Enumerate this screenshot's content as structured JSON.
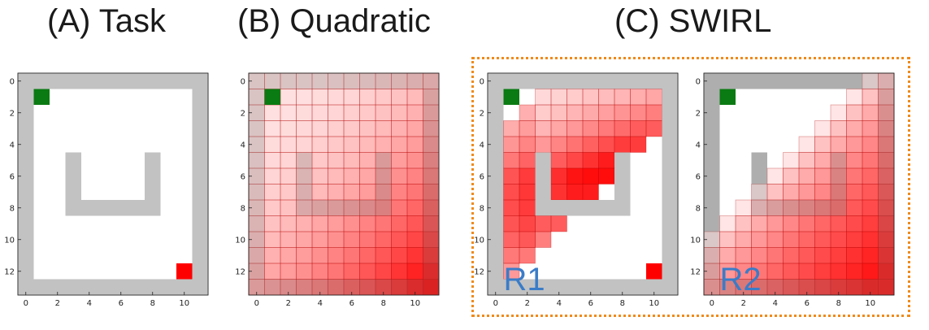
{
  "titles": {
    "task": "(A) Task",
    "quadratic": "(B) Quadratic",
    "swirl": "(C) SWIRL"
  },
  "grid": {
    "rows": 14,
    "cols": 12,
    "x_ticks": [
      0,
      2,
      4,
      6,
      8,
      10
    ],
    "y_ticks": [
      0,
      2,
      4,
      6,
      8,
      10,
      12
    ],
    "wall_cells": [
      [
        0,
        0
      ],
      [
        0,
        1
      ],
      [
        0,
        2
      ],
      [
        0,
        3
      ],
      [
        0,
        4
      ],
      [
        0,
        5
      ],
      [
        0,
        6
      ],
      [
        0,
        7
      ],
      [
        0,
        8
      ],
      [
        0,
        9
      ],
      [
        0,
        10
      ],
      [
        0,
        11
      ],
      [
        13,
        0
      ],
      [
        13,
        1
      ],
      [
        13,
        2
      ],
      [
        13,
        3
      ],
      [
        13,
        4
      ],
      [
        13,
        5
      ],
      [
        13,
        6
      ],
      [
        13,
        7
      ],
      [
        13,
        8
      ],
      [
        13,
        9
      ],
      [
        13,
        10
      ],
      [
        13,
        11
      ],
      [
        1,
        0
      ],
      [
        2,
        0
      ],
      [
        3,
        0
      ],
      [
        4,
        0
      ],
      [
        5,
        0
      ],
      [
        6,
        0
      ],
      [
        7,
        0
      ],
      [
        8,
        0
      ],
      [
        9,
        0
      ],
      [
        10,
        0
      ],
      [
        11,
        0
      ],
      [
        12,
        0
      ],
      [
        1,
        11
      ],
      [
        2,
        11
      ],
      [
        3,
        11
      ],
      [
        4,
        11
      ],
      [
        5,
        11
      ],
      [
        6,
        11
      ],
      [
        7,
        11
      ],
      [
        8,
        11
      ],
      [
        9,
        11
      ],
      [
        10,
        11
      ],
      [
        11,
        11
      ],
      [
        12,
        11
      ],
      [
        5,
        3
      ],
      [
        6,
        3
      ],
      [
        7,
        3
      ],
      [
        8,
        3
      ],
      [
        5,
        8
      ],
      [
        6,
        8
      ],
      [
        7,
        8
      ],
      [
        8,
        8
      ],
      [
        8,
        4
      ],
      [
        8,
        5
      ],
      [
        8,
        6
      ],
      [
        8,
        7
      ]
    ],
    "start_cell": [
      1,
      1
    ],
    "goal_cell": [
      12,
      10
    ],
    "colors": {
      "wall": "#c2c2c2",
      "start": "#0a7a12",
      "goal": "#ff0000",
      "reward": "#ff0000",
      "reward_edge": "#b00000"
    }
  },
  "region_labels": {
    "r1": "R1",
    "r2": "R2"
  },
  "swirl_border_color": "#f08a1a"
}
